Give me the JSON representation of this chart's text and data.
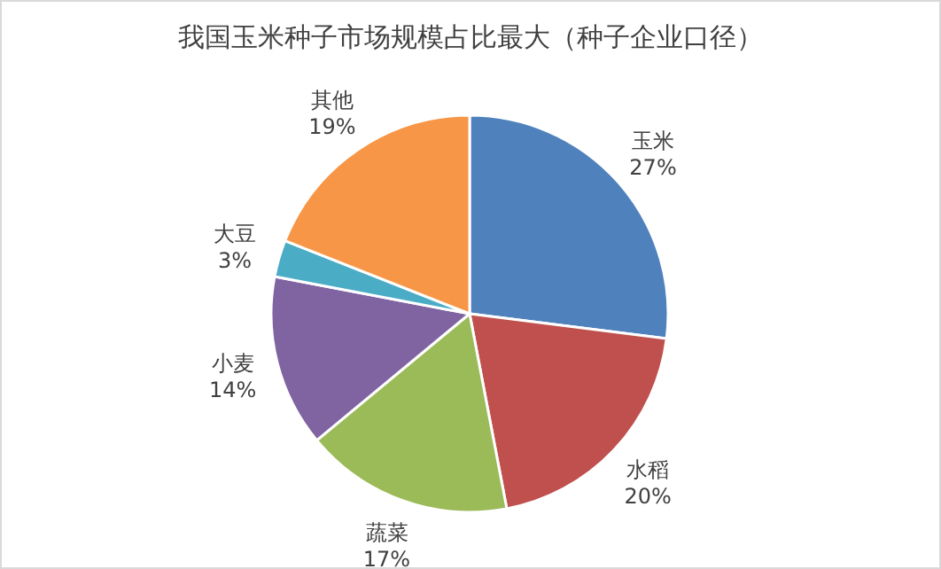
{
  "chart_data": {
    "type": "pie",
    "title": "我国玉米种子市场规模占比最大（种子企业口径）",
    "categories": [
      "玉米",
      "水稻",
      "蔬菜",
      "小麦",
      "大豆",
      "其他"
    ],
    "values": [
      27,
      20,
      17,
      14,
      3,
      19
    ],
    "value_labels": [
      "27%",
      "20%",
      "17%",
      "14%",
      "3%",
      "19%"
    ],
    "colors": [
      "#4f81bd",
      "#c0504d",
      "#9bbb59",
      "#8064a2",
      "#4bacc6",
      "#f79646"
    ]
  }
}
